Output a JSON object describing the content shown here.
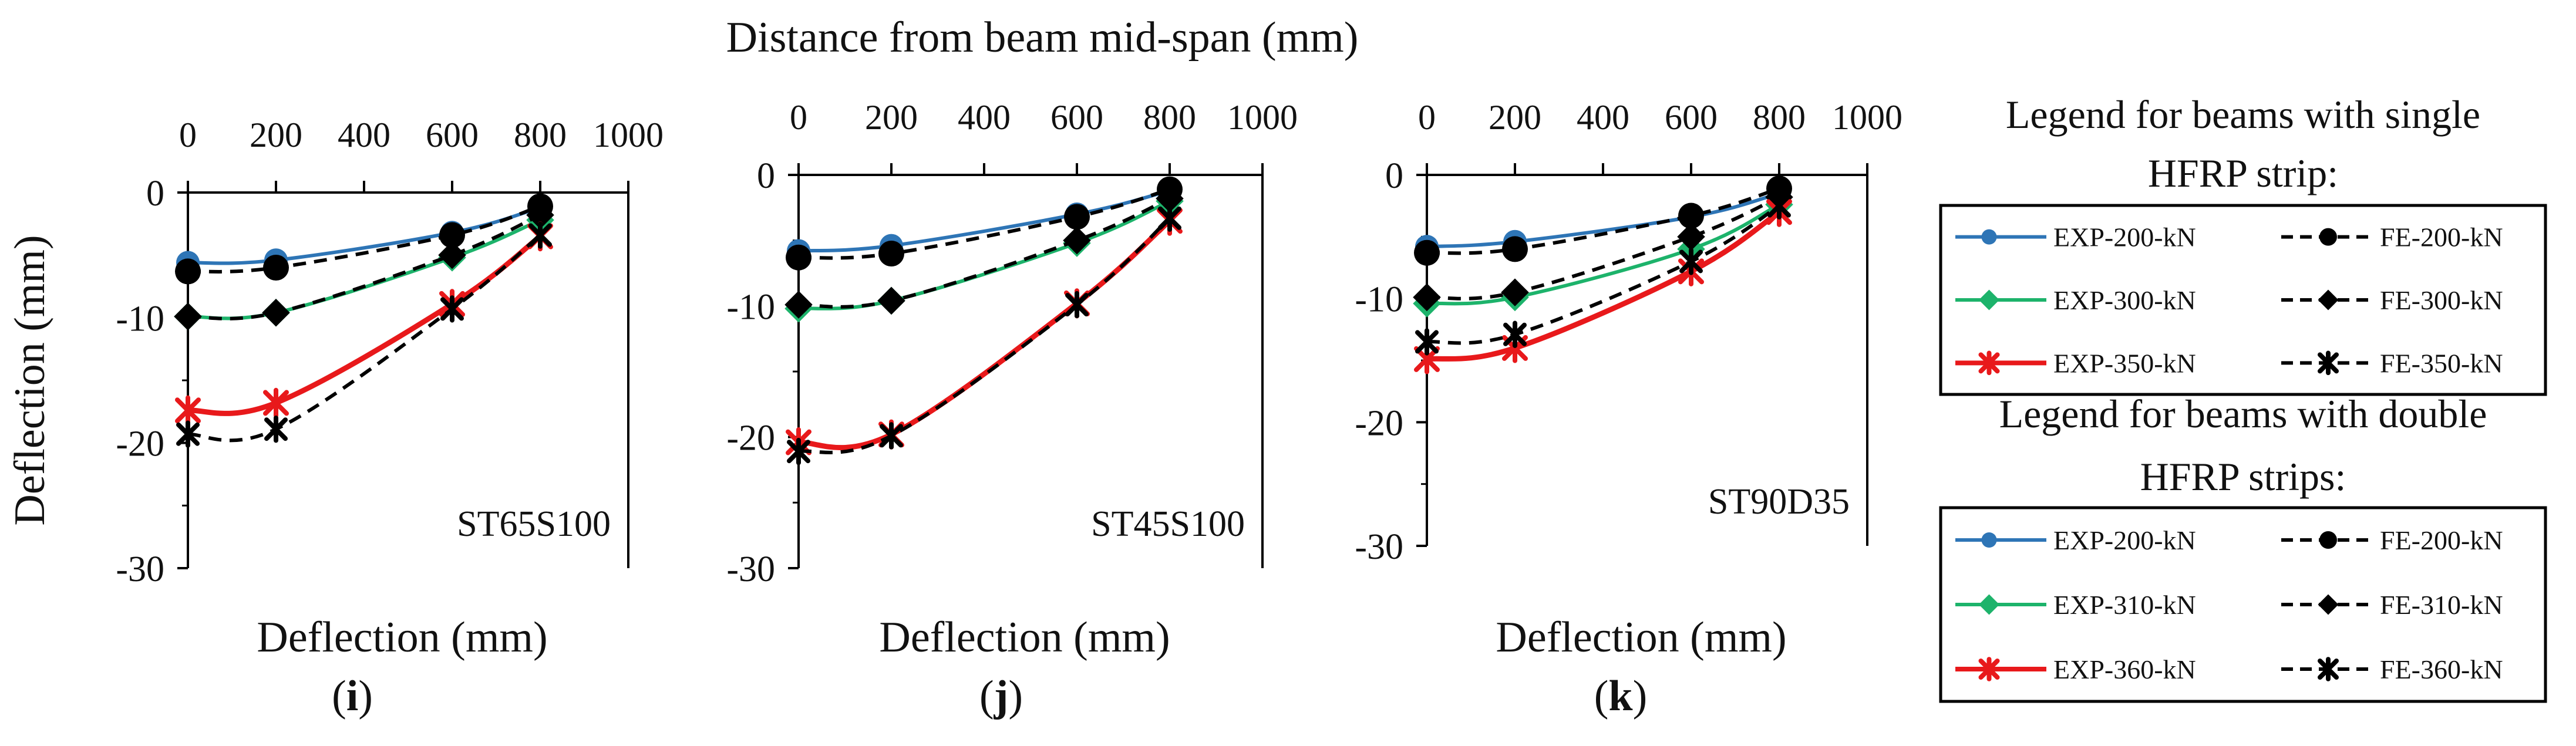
{
  "figure": {
    "top_xlabel": "Distance from beam mid-span (mm)"
  },
  "chart_data": [
    {
      "type": "line",
      "panel_label": "i",
      "beam_label": "ST65S100",
      "xlabel": "Deflection (mm)",
      "ylabel": "Deflection (mm)",
      "top_axis_label": "Distance from beam mid-span (mm)",
      "xlim": [
        0,
        1000
      ],
      "ylim": [
        -30,
        0
      ],
      "x_ticks": [
        0,
        200,
        400,
        600,
        800,
        1000
      ],
      "x_tick_labels": [
        "0",
        "200",
        "400",
        "600",
        "800",
        "1000"
      ],
      "y_ticks": [
        0,
        -10,
        -20,
        -30
      ],
      "y_tick_labels": [
        "0",
        "-10",
        "-20",
        "-30"
      ],
      "x": [
        0,
        200,
        600,
        800
      ],
      "series": [
        {
          "name": "EXP-200-kN",
          "values": [
            -5.6,
            -5.4,
            -3.2,
            -1.2
          ]
        },
        {
          "name": "FE-200-kN",
          "values": [
            -6.3,
            -6.0,
            -3.4,
            -1.1
          ]
        },
        {
          "name": "EXP-300-kN",
          "values": [
            -9.9,
            -9.6,
            -5.2,
            -2.2
          ]
        },
        {
          "name": "FE-300-kN",
          "values": [
            -9.9,
            -9.6,
            -5.0,
            -1.8
          ]
        },
        {
          "name": "EXP-350-kN",
          "values": [
            -17.4,
            -16.8,
            -8.9,
            -3.5
          ]
        },
        {
          "name": "FE-350-kN",
          "values": [
            -19.3,
            -18.9,
            -9.3,
            -3.4
          ]
        }
      ]
    },
    {
      "type": "line",
      "panel_label": "j",
      "beam_label": "ST45S100",
      "xlabel": "Deflection (mm)",
      "ylabel": "Deflection (mm)",
      "top_axis_label": "Distance from beam mid-span (mm)",
      "xlim": [
        0,
        1000
      ],
      "ylim": [
        -30,
        0
      ],
      "x_ticks": [
        0,
        200,
        400,
        600,
        800,
        1000
      ],
      "x_tick_labels": [
        "0",
        "200",
        "400",
        "600",
        "800",
        "1000"
      ],
      "y_ticks": [
        0,
        -10,
        -20,
        -30
      ],
      "y_tick_labels": [
        "0",
        "-10",
        "-20",
        "-30"
      ],
      "x": [
        0,
        200,
        600,
        800
      ],
      "series": [
        {
          "name": "EXP-200-kN",
          "values": [
            -5.8,
            -5.4,
            -3.0,
            -1.2
          ]
        },
        {
          "name": "FE-200-kN",
          "values": [
            -6.3,
            -6.0,
            -3.2,
            -1.1
          ]
        },
        {
          "name": "EXP-300-kN",
          "values": [
            -10.2,
            -9.6,
            -5.2,
            -2.0
          ]
        },
        {
          "name": "FE-300-kN",
          "values": [
            -9.9,
            -9.6,
            -5.0,
            -1.8
          ]
        },
        {
          "name": "EXP-350-kN",
          "values": [
            -20.4,
            -19.8,
            -9.8,
            -3.5
          ]
        },
        {
          "name": "FE-350-kN",
          "values": [
            -21.1,
            -19.9,
            -9.9,
            -3.3
          ]
        }
      ]
    },
    {
      "type": "line",
      "panel_label": "k",
      "beam_label": "ST90D35",
      "xlabel": "Deflection (mm)",
      "ylabel": "Deflection (mm)",
      "top_axis_label": "Distance from beam mid-span (mm)",
      "xlim": [
        0,
        1000
      ],
      "ylim": [
        -30,
        0
      ],
      "x_ticks": [
        0,
        200,
        400,
        600,
        800,
        1000
      ],
      "x_tick_labels": [
        "0",
        "200",
        "400",
        "600",
        "800",
        "1000"
      ],
      "y_ticks": [
        0,
        -10,
        -20,
        -30
      ],
      "y_tick_labels": [
        "0",
        "-10",
        "-20",
        "-30"
      ],
      "x": [
        0,
        200,
        600,
        800
      ],
      "series": [
        {
          "name": "EXP-200-kN",
          "values": [
            -5.8,
            -5.4,
            -3.4,
            -1.5
          ]
        },
        {
          "name": "FE-200-kN",
          "values": [
            -6.3,
            -6.0,
            -3.3,
            -1.1
          ]
        },
        {
          "name": "EXP-310-kN",
          "values": [
            -10.4,
            -9.9,
            -6.0,
            -2.4
          ]
        },
        {
          "name": "FE-310-kN",
          "values": [
            -9.9,
            -9.5,
            -5.0,
            -1.8
          ]
        },
        {
          "name": "EXP-360-kN",
          "values": [
            -14.9,
            -14.0,
            -7.8,
            -3.0
          ]
        },
        {
          "name": "FE-360-kN",
          "values": [
            -13.5,
            -12.9,
            -7.0,
            -2.5
          ]
        }
      ]
    }
  ],
  "legends": [
    {
      "title_line1": "Legend for beams with single",
      "title_line2": "HFRP strip:",
      "entries": [
        {
          "name": "EXP-200-kN",
          "color": "#2E75B6",
          "style": "solid",
          "marker": "circle"
        },
        {
          "name": "FE-200-kN",
          "color": "#000000",
          "style": "dashed",
          "marker": "circle"
        },
        {
          "name": "EXP-300-kN",
          "color": "#1DB36B",
          "style": "solid",
          "marker": "diamond"
        },
        {
          "name": "FE-300-kN",
          "color": "#000000",
          "style": "dashed",
          "marker": "diamond"
        },
        {
          "name": "EXP-350-kN",
          "color": "#E8191B",
          "style": "solid",
          "marker": "asterisk"
        },
        {
          "name": "FE-350-kN",
          "color": "#000000",
          "style": "dashed",
          "marker": "asterisk"
        }
      ]
    },
    {
      "title_line1": "Legend for beams with double",
      "title_line2": "HFRP strips:",
      "entries": [
        {
          "name": "EXP-200-kN",
          "color": "#2E75B6",
          "style": "solid",
          "marker": "circle"
        },
        {
          "name": "FE-200-kN",
          "color": "#000000",
          "style": "dashed",
          "marker": "circle"
        },
        {
          "name": "EXP-310-kN",
          "color": "#1DB36B",
          "style": "solid",
          "marker": "diamond"
        },
        {
          "name": "FE-310-kN",
          "color": "#000000",
          "style": "dashed",
          "marker": "diamond"
        },
        {
          "name": "EXP-360-kN",
          "color": "#E8191B",
          "style": "solid",
          "marker": "asterisk"
        },
        {
          "name": "FE-360-kN",
          "color": "#000000",
          "style": "dashed",
          "marker": "asterisk"
        }
      ]
    }
  ],
  "colors": {
    "exp_200": "#2E75B6",
    "exp_300": "#1DB36B",
    "exp_350": "#E8191B",
    "fe": "#000000",
    "axis": "#000000"
  }
}
